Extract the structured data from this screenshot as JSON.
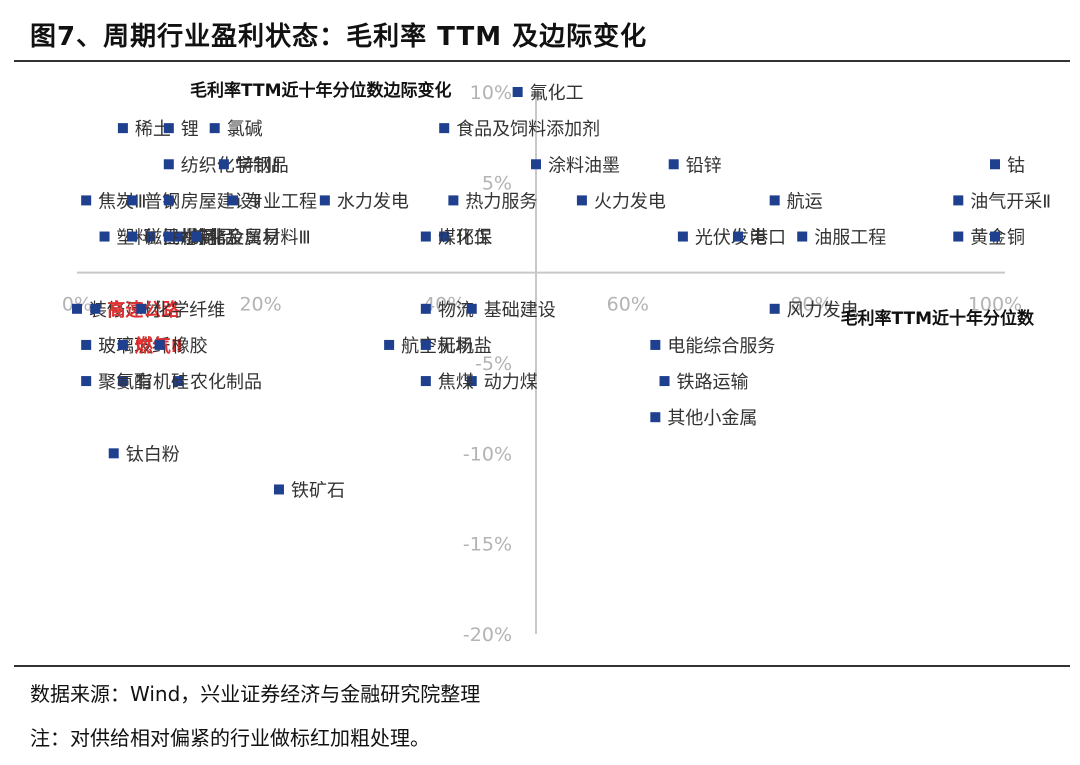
{
  "title": "图7、周期行业盈利状态：毛利率 TTM 及边际变化",
  "source_note": "数据来源：Wind，兴业证券经济与金融研究院整理",
  "remark": "注：对供给相对偏紧的行业做标红加粗处理。",
  "colors": {
    "marker": "#1f3f8f",
    "highlight": "#e03030",
    "axis": "#c8c8c8",
    "tick": "#b3b3b3",
    "label": "#333333"
  },
  "chart_data": {
    "type": "scatter",
    "xlabel": "毛利率TTM近十年分位数",
    "ylabel": "毛利率TTM近十年分位数边际变化",
    "xlim": [
      0,
      100
    ],
    "ylim": [
      -20,
      10
    ],
    "x_ticks": [
      "0%",
      "20%",
      "40%",
      "60%",
      "80%",
      "100%"
    ],
    "y_ticks": [
      "10%",
      "5%",
      "-5%",
      "-10%",
      "-15%",
      "-20%"
    ],
    "points": [
      {
        "name": "氟化工",
        "x": 48,
        "y": 10
      },
      {
        "name": "稀土",
        "x": 5,
        "y": 8
      },
      {
        "name": "锂",
        "x": 10,
        "y": 8
      },
      {
        "name": "氯碱",
        "x": 15,
        "y": 8
      },
      {
        "name": "食品及饲料添加剂",
        "x": 40,
        "y": 8
      },
      {
        "name": "纺织化学制品",
        "x": 10,
        "y": 6
      },
      {
        "name": "特钢Ⅱ",
        "x": 16,
        "y": 6
      },
      {
        "name": "涂料油墨",
        "x": 50,
        "y": 6
      },
      {
        "name": "铅锌",
        "x": 65,
        "y": 6
      },
      {
        "name": "钴",
        "x": 100,
        "y": 6
      },
      {
        "name": "油气开采Ⅱ",
        "x": 96,
        "y": 4
      },
      {
        "name": "焦炭Ⅲ",
        "x": 1,
        "y": 4
      },
      {
        "name": "普钢",
        "x": 6,
        "y": 4
      },
      {
        "name": "房屋建设Ⅱ",
        "x": 10,
        "y": 4
      },
      {
        "name": "专业工程",
        "x": 17,
        "y": 4
      },
      {
        "name": "水力发电",
        "x": 27,
        "y": 4
      },
      {
        "name": "热力服务",
        "x": 41,
        "y": 4
      },
      {
        "name": "火力发电",
        "x": 55,
        "y": 4
      },
      {
        "name": "航运",
        "x": 76,
        "y": 4
      },
      {
        "name": "黄金",
        "x": 96,
        "y": 2
      },
      {
        "name": "铜",
        "x": 100,
        "y": 2
      },
      {
        "name": "塑料",
        "x": 3,
        "y": 2
      },
      {
        "name": "民爆制品",
        "x": 8,
        "y": 2
      },
      {
        "name": "炼化及贸易",
        "x": 11,
        "y": 2
      },
      {
        "name": "环保",
        "x": 40,
        "y": 2
      },
      {
        "name": "煤化工",
        "x": 38,
        "y": 2
      },
      {
        "name": "光伏发电",
        "x": 66,
        "y": 2
      },
      {
        "name": "港口",
        "x": 72,
        "y": 2
      },
      {
        "name": "油服工程",
        "x": 79,
        "y": 2
      },
      {
        "name": "磁性材料",
        "x": 6,
        "y": 2
      },
      {
        "name": "水泥",
        "x": 10,
        "y": 2
      },
      {
        "name": "非金属材料Ⅲ",
        "x": 13,
        "y": 2
      },
      {
        "name": "装修建材",
        "x": 0,
        "y": -2
      },
      {
        "name": "高速公路",
        "x": 2,
        "y": -2,
        "highlight": true
      },
      {
        "name": "化学纤维",
        "x": 7,
        "y": -2
      },
      {
        "name": "物流",
        "x": 38,
        "y": -2
      },
      {
        "name": "基础建设",
        "x": 43,
        "y": -2
      },
      {
        "name": "风力发电",
        "x": 76,
        "y": -2
      },
      {
        "name": "玻璃玻纤",
        "x": 1,
        "y": -4
      },
      {
        "name": "燃气Ⅱ",
        "x": 5,
        "y": -4,
        "highlight": true
      },
      {
        "name": "橡胶",
        "x": 9,
        "y": -4
      },
      {
        "name": "航空机场",
        "x": 34,
        "y": -4
      },
      {
        "name": "无机盐",
        "x": 38,
        "y": -4
      },
      {
        "name": "电能综合服务",
        "x": 63,
        "y": -4
      },
      {
        "name": "农化制品",
        "x": 11,
        "y": -6
      },
      {
        "name": "有机硅",
        "x": 5,
        "y": -6
      },
      {
        "name": "聚氨酯",
        "x": 1,
        "y": -6
      },
      {
        "name": "动力煤",
        "x": 43,
        "y": -6
      },
      {
        "name": "焦煤",
        "x": 38,
        "y": -6
      },
      {
        "name": "铁路运输",
        "x": 64,
        "y": -6
      },
      {
        "name": "其他小金属",
        "x": 63,
        "y": -8
      },
      {
        "name": "钛白粉",
        "x": 4,
        "y": -10
      },
      {
        "name": "铁矿石",
        "x": 22,
        "y": -12
      }
    ]
  }
}
